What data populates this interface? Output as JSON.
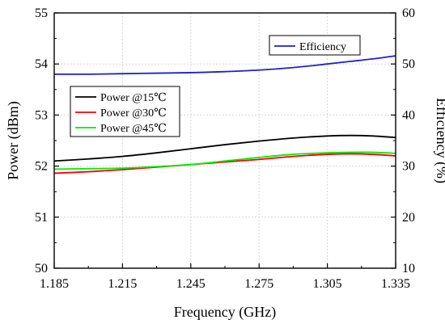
{
  "chart_data": {
    "type": "line",
    "xlabel": "Frequency (GHz)",
    "ylabel_left": "Power (dBm)",
    "ylabel_right": "Efficiency (%)",
    "xlim": [
      1.185,
      1.335
    ],
    "ylim_left": [
      50,
      55
    ],
    "ylim_right": [
      10,
      60
    ],
    "x_ticks": [
      "1.185",
      "1.215",
      "1.245",
      "1.275",
      "1.305",
      "1.335"
    ],
    "y_ticks_left": [
      "50",
      "51",
      "52",
      "53",
      "54",
      "55"
    ],
    "y_ticks_right": [
      "10",
      "20",
      "30",
      "40",
      "50",
      "60"
    ],
    "grid": true,
    "x": [
      1.185,
      1.2,
      1.215,
      1.23,
      1.245,
      1.26,
      1.275,
      1.29,
      1.305,
      1.315,
      1.325,
      1.335
    ],
    "series": [
      {
        "name": "Power @15℃",
        "axis": "left",
        "color": "#000000",
        "values": [
          52.1,
          52.14,
          52.19,
          52.26,
          52.34,
          52.42,
          52.49,
          52.55,
          52.59,
          52.6,
          52.59,
          52.56
        ]
      },
      {
        "name": "Power @30℃",
        "axis": "left",
        "color": "#ff0000",
        "values": [
          51.86,
          51.89,
          51.93,
          51.98,
          52.03,
          52.08,
          52.13,
          52.19,
          52.23,
          52.24,
          52.23,
          52.2
        ]
      },
      {
        "name": "Power @45℃",
        "axis": "left",
        "color": "#00ee00",
        "values": [
          51.94,
          51.95,
          51.96,
          51.99,
          52.03,
          52.1,
          52.17,
          52.23,
          52.26,
          52.27,
          52.27,
          52.25
        ]
      },
      {
        "name": "Efficiency",
        "axis": "right",
        "color": "#1f1fcf",
        "values": [
          48.0,
          48.0,
          48.1,
          48.2,
          48.3,
          48.5,
          48.8,
          49.3,
          50.0,
          50.5,
          51.0,
          51.6
        ]
      }
    ],
    "legend_left": {
      "placement": "middle-left",
      "items": [
        "Power @15℃",
        "Power @30℃",
        "Power @45℃"
      ]
    },
    "legend_right": {
      "placement": "top-right",
      "items": [
        "Efficiency"
      ]
    }
  }
}
